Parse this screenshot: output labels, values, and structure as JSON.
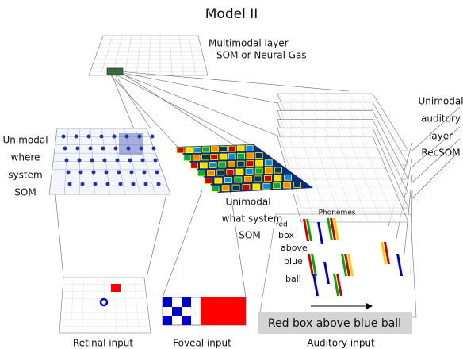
{
  "title": "Model II",
  "multimodal": {
    "lines": [
      "Multimodal layer",
      "SOM or Neural Gas"
    ]
  },
  "auditory_som": {
    "lines": [
      "Unimodal",
      "auditory",
      "layer",
      "RecSOM"
    ]
  },
  "where_som": {
    "lines": [
      "Unimodal",
      "where",
      "system",
      "SOM"
    ]
  },
  "what_som": {
    "lines": [
      "Unimodal",
      "what system",
      "SOM"
    ]
  },
  "phonemes": {
    "title": "Phonemes",
    "words": [
      "red",
      "box",
      "above",
      "blue",
      "ball"
    ]
  },
  "sentence": "Red box above blue ball",
  "inputs": [
    "Retinal input",
    "Foveal input",
    "Auditory input"
  ]
}
